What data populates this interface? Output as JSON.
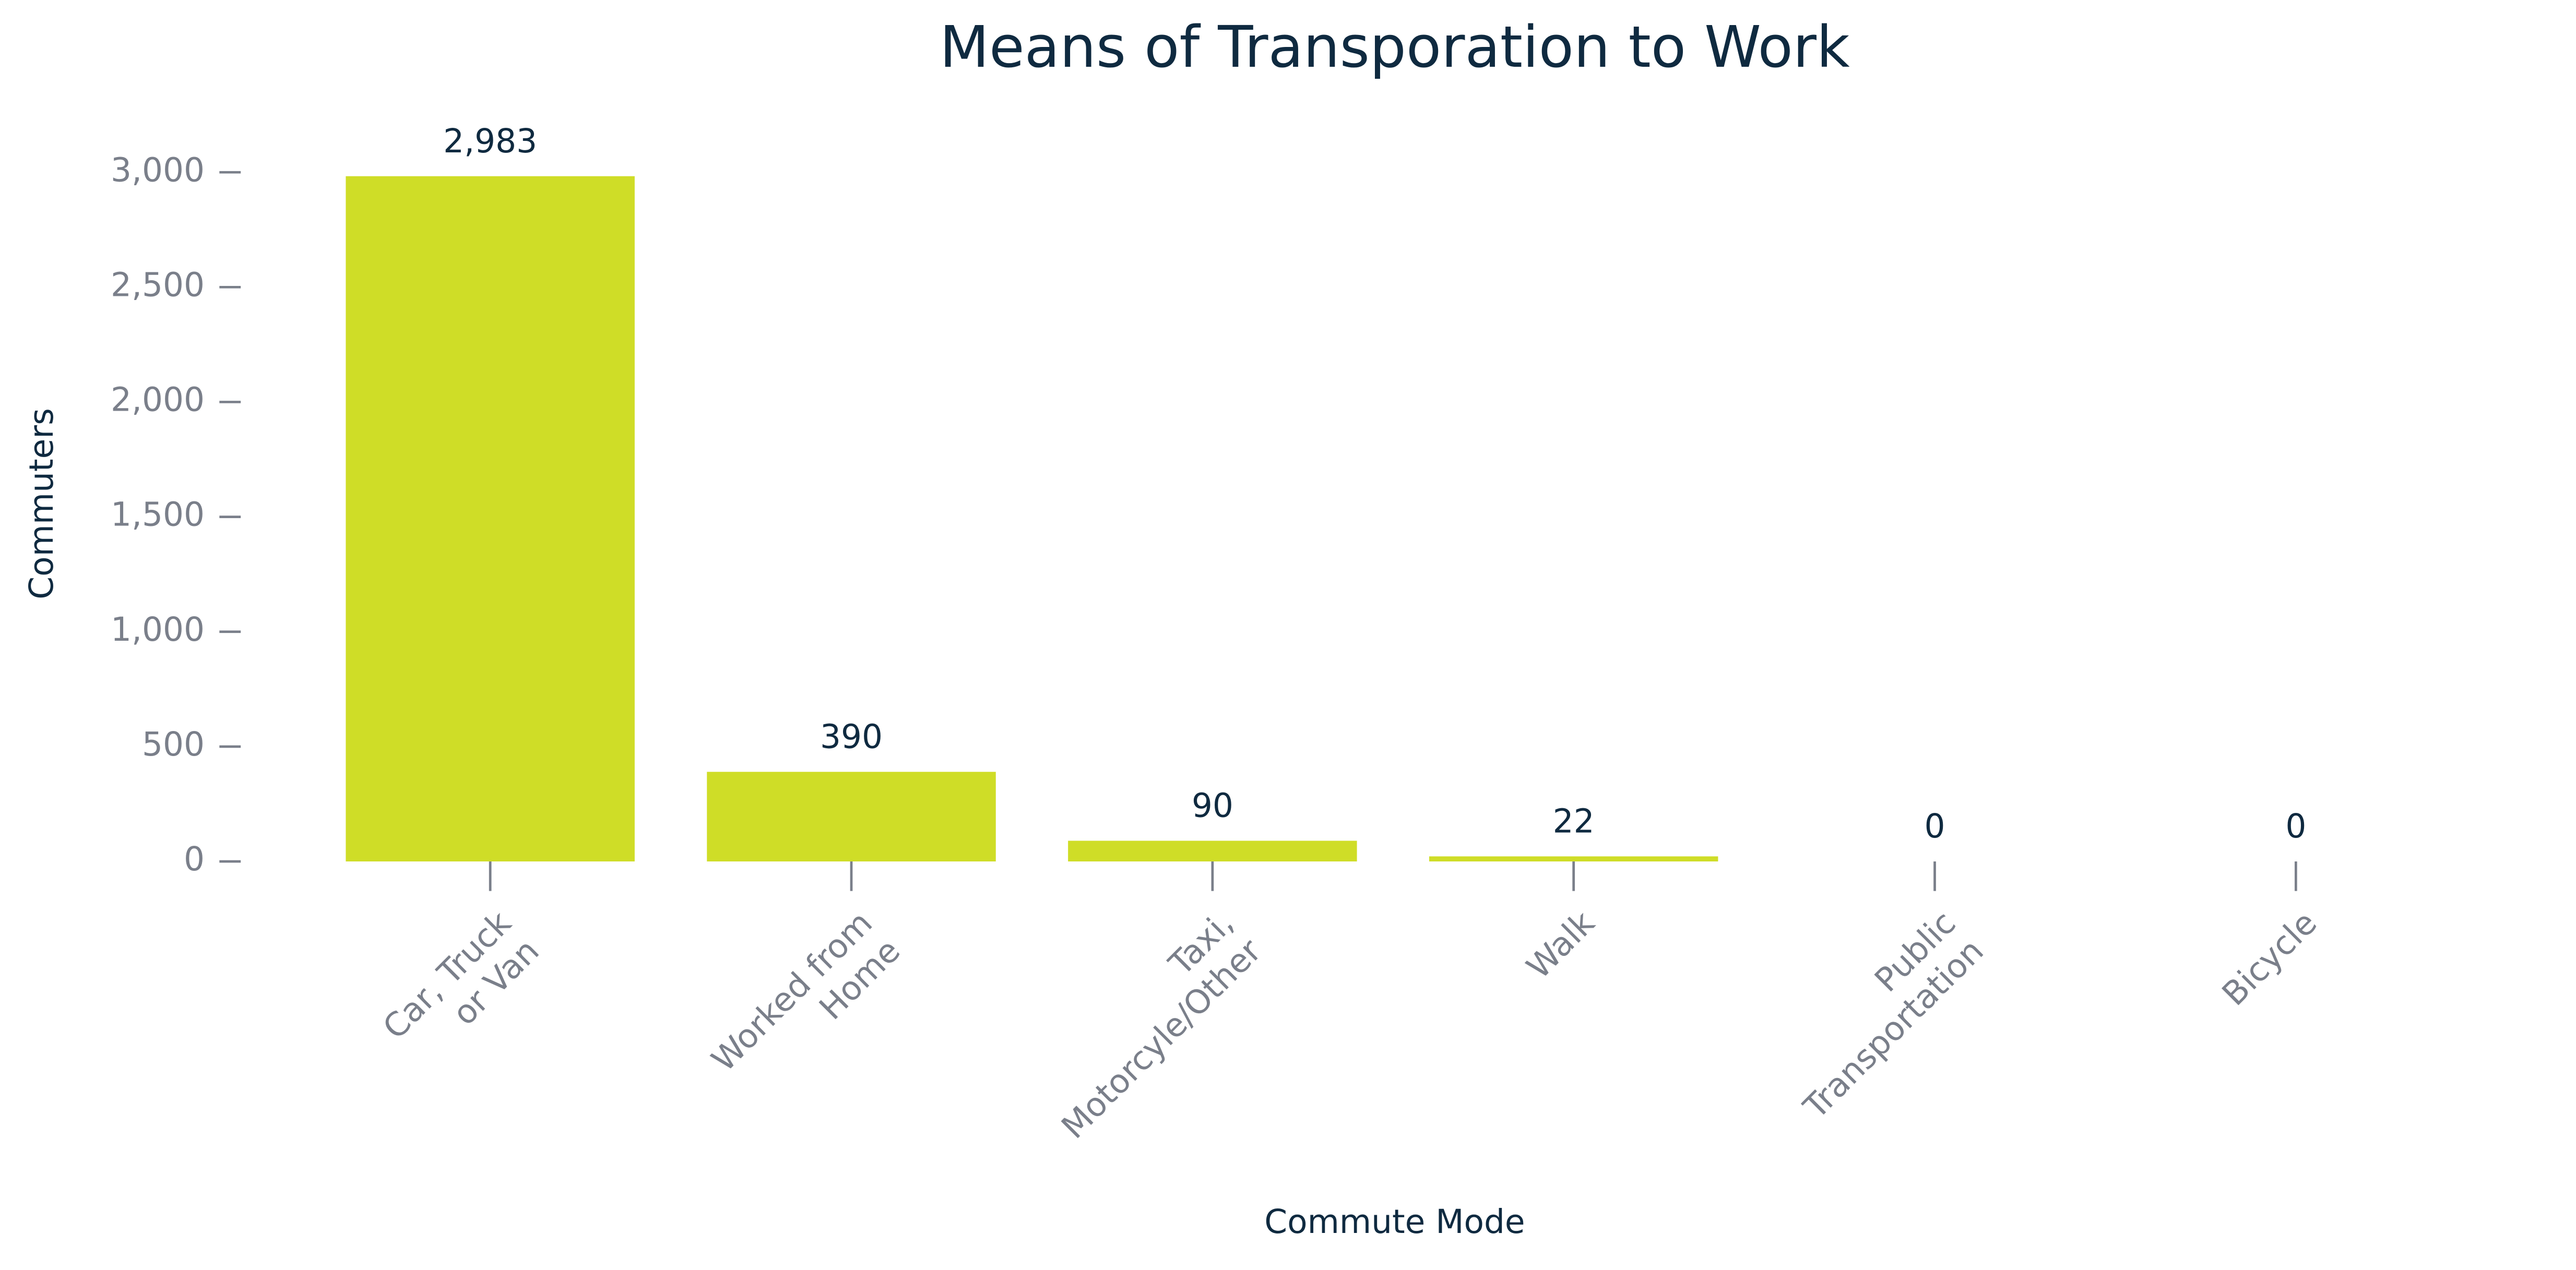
{
  "chart_data": {
    "type": "bar",
    "title": "Means of Transporation to Work",
    "x_label": "Commute Mode",
    "y_label": "Commuters",
    "categories": [
      "Car, Truck\nor Van",
      "Worked from\nHome",
      "Taxi,\nMotorcyle/Other",
      "Walk",
      "Public\nTransportation",
      "Bicycle"
    ],
    "values": [
      2983,
      390,
      90,
      22,
      0,
      0
    ],
    "value_labels": [
      "2,983",
      "390",
      "90",
      "22",
      "0",
      "0"
    ],
    "color": "#cfdd27",
    "ylim": [
      0,
      3000
    ],
    "yticks": [
      0,
      500,
      {
        "value": 1000,
        "label": "1,000"
      },
      {
        "value": 1500,
        "label": "1,500"
      },
      {
        "value": 2000,
        "label": "2,000"
      },
      {
        "value": 2500,
        "label": "2,500"
      },
      {
        "value": 3000,
        "label": "3,000"
      }
    ],
    "grid": false
  }
}
